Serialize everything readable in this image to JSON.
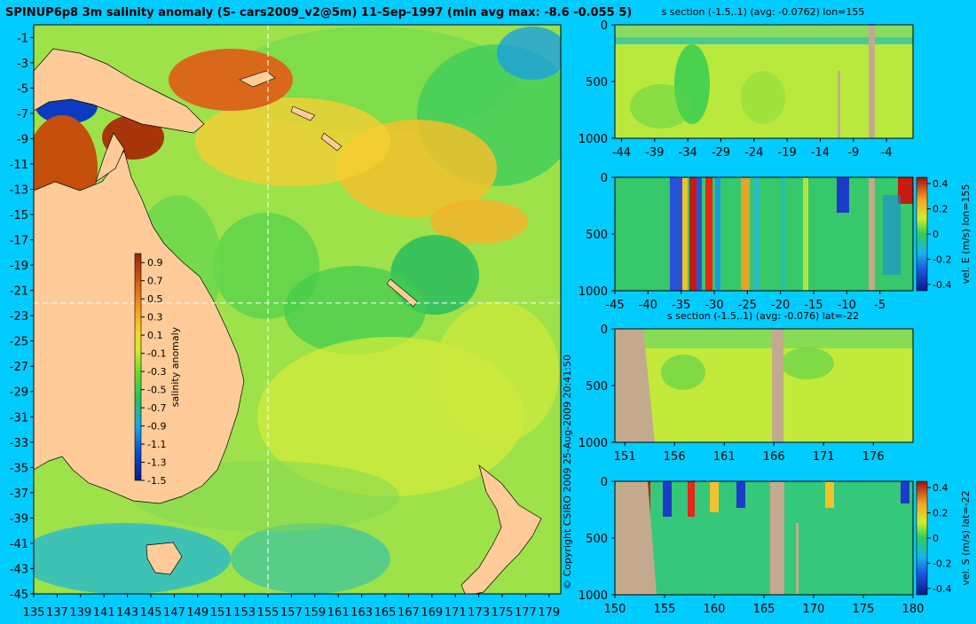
{
  "figure_title": "SPINUP6p8 3m salinity anomaly (S- cars2009_v2@5m) 11-Sep-1997 (min avg max: -8.6 -0.055 5)",
  "copyright": "© Copyright CSIRO 2009  25-Aug-2009 20:41:50",
  "colors": {
    "background": "#00ccff",
    "land": "#ffcc99",
    "section_mask": "#c4aa8c",
    "crosshair": "#ffffff"
  },
  "chart_data": [
    {
      "type": "heatmap",
      "id": "map",
      "title": "SPINUP6p8 3m salinity anomaly (S- cars2009_v2@5m) 11-Sep-1997 (min avg max: -8.6 -0.055 5)",
      "xlim": [
        135,
        180
      ],
      "ylim": [
        -45,
        0
      ],
      "x_ticks": [
        "135",
        "137",
        "139",
        "141",
        "143",
        "145",
        "147",
        "149",
        "151",
        "153",
        "155",
        "157",
        "159",
        "161",
        "163",
        "165",
        "167",
        "169",
        "171",
        "173",
        "175",
        "177",
        "179"
      ],
      "y_ticks": [
        "-1",
        "-3",
        "-5",
        "-7",
        "-9",
        "-11",
        "-13",
        "-15",
        "-17",
        "-19",
        "-21",
        "-23",
        "-25",
        "-27",
        "-29",
        "-31",
        "-33",
        "-35",
        "-37",
        "-39",
        "-41",
        "-43",
        "-45"
      ],
      "crosshair": {
        "lon": 155,
        "lat": -22
      },
      "stats": {
        "min": -8.6,
        "avg": -0.055,
        "max": 5
      },
      "colorbar": {
        "label": "salinity anomaly",
        "range": [
          -1.5,
          1.0
        ],
        "ticks": [
          "0.9",
          "0.7",
          "0.5",
          "0.3",
          "0.1",
          "-0.1",
          "-0.3",
          "-0.5",
          "-0.7",
          "-0.9",
          "-1.1",
          "-1.3",
          "-1.5"
        ]
      }
    },
    {
      "type": "heatmap",
      "id": "s_section_lon",
      "title": "s section (-1.5,.1) (avg: -0.0762) lon=155",
      "xlim": [
        -45,
        0
      ],
      "ylim": [
        1000,
        0
      ],
      "x_ticks": [
        "-44",
        "-39",
        "-34",
        "-29",
        "-24",
        "-19",
        "-14",
        "-9",
        "-4"
      ],
      "y_ticks": [
        "0",
        "500",
        "1000"
      ]
    },
    {
      "type": "heatmap",
      "id": "vel_e_section",
      "title": "",
      "xlim": [
        -45,
        0
      ],
      "ylim": [
        1000,
        0
      ],
      "x_ticks": [
        "-45",
        "-40",
        "-35",
        "-30",
        "-25",
        "-20",
        "-15",
        "-10",
        "-5"
      ],
      "y_ticks": [
        "0",
        "500",
        "1000"
      ],
      "colorbar": {
        "label": "vel. E (m/s) lon=155",
        "range": [
          -0.45,
          0.45
        ],
        "ticks": [
          "0.4",
          "0.2",
          "0",
          "-0.2",
          "-0.4"
        ]
      }
    },
    {
      "type": "heatmap",
      "id": "s_section_lat",
      "title": "s section (-1.5,.1) (avg: -0.076) lat=-22",
      "xlim": [
        150,
        180
      ],
      "ylim": [
        1000,
        0
      ],
      "x_ticks": [
        "151",
        "156",
        "161",
        "166",
        "171",
        "176"
      ],
      "y_ticks": [
        "0",
        "500",
        "1000"
      ]
    },
    {
      "type": "heatmap",
      "id": "vel_s_section",
      "title": "",
      "xlim": [
        150,
        180
      ],
      "ylim": [
        1000,
        0
      ],
      "x_ticks": [
        "150",
        "155",
        "160",
        "165",
        "170",
        "175",
        "180"
      ],
      "y_ticks": [
        "0",
        "500",
        "1000"
      ],
      "colorbar": {
        "label": "vel. S (m/s) lat=-22",
        "range": [
          -0.45,
          0.45
        ],
        "ticks": [
          "0.4",
          "0.2",
          "0",
          "-0.2",
          "-0.4"
        ]
      }
    }
  ]
}
